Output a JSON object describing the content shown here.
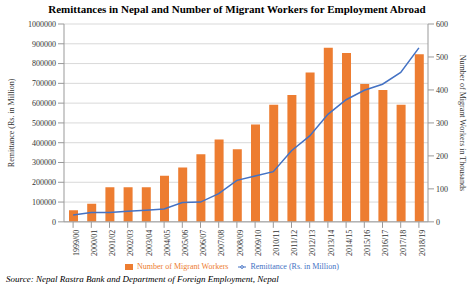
{
  "chart_data": {
    "type": "bar",
    "title": "Remittances in Nepal and Number of Migrant Workers for Employment Abroad",
    "source": "Source: Nepal Rastra Bank and Department of Foreign Employment, Nepal",
    "categories": [
      "1999/00",
      "2000/01",
      "2001/02",
      "2002/03",
      "2003/04",
      "2004/05",
      "2005/06",
      "2006/07",
      "2007/08",
      "2008/09",
      "2009/10",
      "2010/11",
      "2011/12",
      "2012/13",
      "2013/14",
      "2014/15",
      "2015/16",
      "2016/17",
      "2017/18",
      "2018/19"
    ],
    "series": [
      {
        "name": "Number of Migrant Workers",
        "type": "bar",
        "color": "#ED7D31",
        "axis": "y2",
        "values": [
          35,
          55,
          105,
          105,
          105,
          140,
          165,
          205,
          250,
          220,
          295,
          355,
          385,
          453,
          528,
          512,
          418,
          400,
          355,
          508
        ]
      },
      {
        "name": "Remittance (Rs. in Million)",
        "type": "line",
        "color": "#4472C4",
        "values": [
          35000,
          47000,
          47500,
          54000,
          59000,
          65500,
          97700,
          100000,
          142700,
          209700,
          231700,
          253500,
          359600,
          434600,
          543300,
          617300,
          665100,
          695500,
          755100,
          879300
        ]
      }
    ],
    "ylabel": "Remittance (Rs. in Million)",
    "y2label": "Number of Migrant Workers in Thousands",
    "ylim": [
      0,
      1000000
    ],
    "yticks": [
      0,
      100000,
      200000,
      300000,
      400000,
      500000,
      600000,
      700000,
      800000,
      900000,
      1000000
    ],
    "y2lim": [
      0,
      600
    ],
    "y2ticks": [
      0,
      100,
      200,
      300,
      400,
      500,
      600
    ],
    "grid": true,
    "legend": "bottom"
  }
}
